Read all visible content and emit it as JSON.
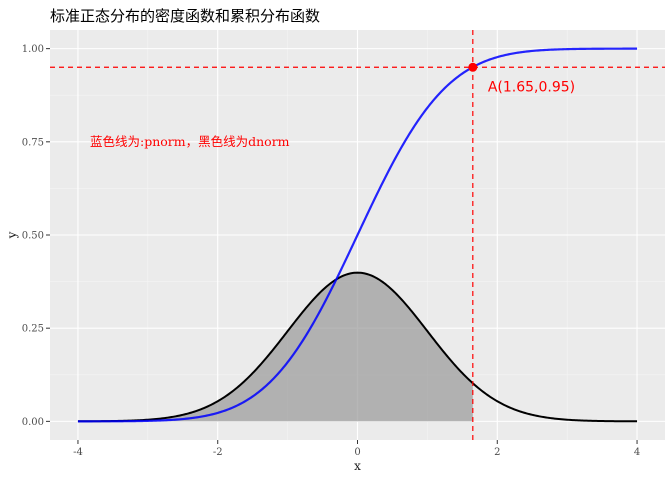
{
  "chart_data": {
    "type": "line",
    "title": "标准正态分布的密度函数和累积分布函数",
    "xlabel": "x",
    "ylabel": "y",
    "xlim": [
      -4.4,
      4.4
    ],
    "ylim": [
      -0.05,
      1.05
    ],
    "x_ticks": [
      -4,
      -2,
      0,
      2,
      4
    ],
    "x_tick_labels": [
      "-4",
      "-2",
      "0",
      "2",
      "4"
    ],
    "y_ticks": [
      0,
      0.25,
      0.5,
      0.75,
      1
    ],
    "y_tick_labels": [
      "0.00",
      "0.25",
      "0.50",
      "0.75",
      "1.00"
    ],
    "grid": true,
    "series": [
      {
        "function": "pnorm",
        "color": "#0000ff",
        "x_range": [
          -4,
          4
        ]
      },
      {
        "function": "dnorm",
        "color": "#000000",
        "x_range": [
          -4,
          4
        ],
        "shaded_until_x": 1.65,
        "shade_color": "#999999"
      }
    ],
    "reference_lines": {
      "vertical_x": 1.65,
      "horizontal_y": 0.95,
      "color": "#ff0000",
      "style": "dashed"
    },
    "point": {
      "x": 1.65,
      "y": 0.95,
      "label": "A(1.65,0.95)",
      "color": "#ff0000"
    },
    "annotation": {
      "text": "蓝色线为:pnorm，黑色线为dnorm",
      "x": -2.4,
      "y": 0.75,
      "color": "#ff0000"
    },
    "colors": {
      "panel_background": "#ebebeb",
      "grid_major": "#ffffff",
      "grid_minor": "#f5f5f5"
    }
  }
}
